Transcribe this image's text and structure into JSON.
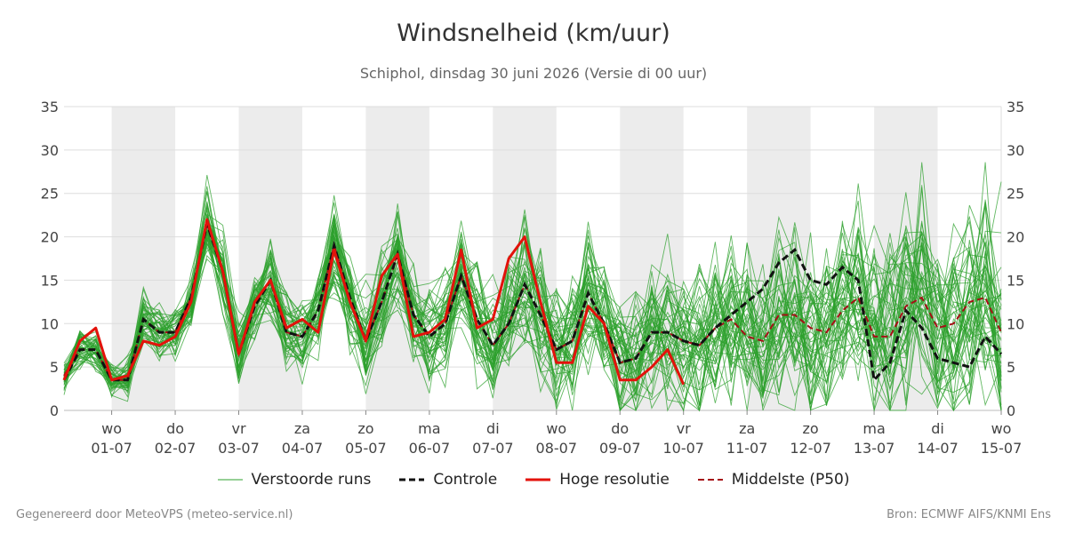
{
  "chart_data": {
    "type": "line",
    "title": "Windsnelheid (km/uur)",
    "subtitle": "Schiphol, dinsdag 30 juni 2026 (Versie di 00 uur)",
    "xlabel": "",
    "ylabel": "",
    "ylim": [
      0,
      35
    ],
    "yticks": [
      0,
      5,
      10,
      15,
      20,
      25,
      30,
      35
    ],
    "grid": true,
    "legend_placement": "bottom",
    "x_start": "2026-06-30T06:00",
    "x_end": "2026-07-15T00:00",
    "day_ticks": [
      {
        "day": "wo",
        "date": "01-07"
      },
      {
        "day": "do",
        "date": "02-07"
      },
      {
        "day": "vr",
        "date": "03-07"
      },
      {
        "day": "za",
        "date": "04-07"
      },
      {
        "day": "zo",
        "date": "05-07"
      },
      {
        "day": "ma",
        "date": "06-07"
      },
      {
        "day": "di",
        "date": "07-07"
      },
      {
        "day": "wo",
        "date": "08-07"
      },
      {
        "day": "do",
        "date": "09-07"
      },
      {
        "day": "vr",
        "date": "10-07"
      },
      {
        "day": "za",
        "date": "11-07"
      },
      {
        "day": "zo",
        "date": "12-07"
      },
      {
        "day": "ma",
        "date": "13-07"
      },
      {
        "day": "di",
        "date": "14-07"
      },
      {
        "day": "wo",
        "date": "15-07"
      }
    ],
    "shaded_day_indices": [
      0,
      2,
      4,
      6,
      8,
      10,
      12
    ],
    "series": [
      {
        "name": "Controle",
        "color": "#111111",
        "style": "dashed",
        "time_start": "2026-06-30T06:00",
        "step_hours": 6,
        "values": [
          3.5,
          7,
          7,
          3.5,
          3.5,
          10.5,
          9,
          9,
          13,
          21.5,
          16,
          6.5,
          12,
          15,
          9,
          8.5,
          11.5,
          19,
          13,
          8,
          12.5,
          18,
          11,
          8.5,
          10,
          15.5,
          10.5,
          7.5,
          10,
          14.5,
          11,
          7,
          8,
          13.5,
          10,
          5.5,
          6,
          9,
          9,
          8,
          7.5,
          9.5,
          11,
          12.5,
          14,
          17,
          18.5,
          15,
          14.5,
          16.5,
          15,
          3.5,
          5.5,
          11.5,
          9.5,
          6,
          5.5,
          5,
          8.5,
          6.5
        ]
      },
      {
        "name": "Hoge resolutie",
        "color": "#e3120b",
        "style": "solid",
        "time_start": "2026-06-30T06:00",
        "step_hours": 6,
        "values": [
          3.5,
          8,
          9.5,
          3.5,
          4,
          8,
          7.5,
          8.5,
          12.5,
          22,
          16,
          6.5,
          12.5,
          15,
          9.5,
          10.5,
          9,
          18.5,
          12.5,
          8,
          15.5,
          18,
          8.5,
          9,
          10.5,
          18.5,
          9.5,
          10.5,
          17.5,
          20,
          12.5,
          5.5,
          5.5,
          12,
          10,
          3.5,
          3.5,
          5,
          7,
          3
        ]
      },
      {
        "name": "Middelste (P50)",
        "color": "#a50f15",
        "style": "dashed",
        "time_start": "2026-06-30T06:00",
        "step_hours": 6,
        "values": [
          4,
          7,
          7,
          3.5,
          3.5,
          10.5,
          9,
          9,
          13,
          21.5,
          16,
          6.5,
          12,
          15,
          9,
          8.5,
          11.5,
          19,
          13,
          8,
          12.5,
          18,
          11,
          8.5,
          10,
          15.5,
          10.5,
          7.5,
          10,
          14.5,
          11,
          7,
          8,
          13.5,
          10,
          5.5,
          6,
          9,
          9,
          8,
          7.5,
          9.5,
          10.5,
          8.5,
          8,
          11,
          11,
          9.5,
          9,
          11.5,
          13,
          8.5,
          8.5,
          12,
          13,
          9.5,
          10,
          12.5,
          13,
          9
        ]
      },
      {
        "name": "Verstoorde runs",
        "color": "#2ca02c",
        "style": "ensemble",
        "member_count": 50
      }
    ],
    "legend": [
      "Verstoorde runs",
      "Controle",
      "Hoge resolutie",
      "Middelste (P50)"
    ]
  },
  "footer": {
    "left": "Gegenereerd door MeteoVPS (meteo-service.nl)",
    "right": "Bron: ECMWF AIFS/KNMI Ens"
  }
}
